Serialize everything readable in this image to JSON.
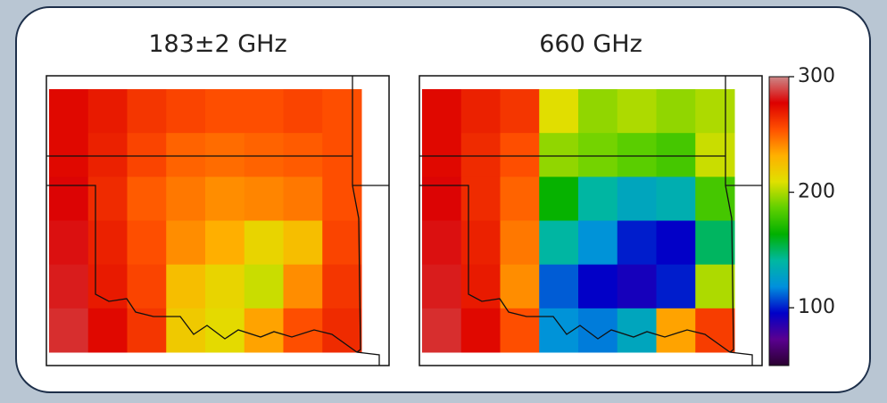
{
  "chart_data": [
    {
      "type": "heatmap",
      "title": "183±2 GHz",
      "z": [
        [
          275,
          270,
          262,
          258,
          255,
          255,
          258,
          255
        ],
        [
          275,
          268,
          258,
          250,
          248,
          250,
          252,
          255
        ],
        [
          278,
          265,
          252,
          245,
          240,
          242,
          245,
          255
        ],
        [
          280,
          268,
          255,
          240,
          232,
          215,
          225,
          258
        ],
        [
          282,
          270,
          258,
          225,
          215,
          205,
          240,
          262
        ],
        [
          285,
          275,
          262,
          220,
          212,
          235,
          255,
          265
        ]
      ]
    },
    {
      "type": "heatmap",
      "title": "660 GHz",
      "z": [
        [
          275,
          268,
          262,
          210,
          195,
          200,
          195,
          200
        ],
        [
          275,
          265,
          255,
          195,
          190,
          185,
          180,
          205
        ],
        [
          278,
          265,
          250,
          165,
          140,
          130,
          135,
          180
        ],
        [
          280,
          268,
          245,
          140,
          120,
          100,
          95,
          150
        ],
        [
          282,
          270,
          240,
          110,
          95,
          90,
          100,
          200
        ],
        [
          285,
          275,
          255,
          120,
          115,
          130,
          235,
          260
        ]
      ],
      "zlim": [
        50,
        300
      ],
      "zticks": [
        100,
        200,
        300
      ],
      "colormap": [
        "#2a0030",
        "#5a0090",
        "#0000c8",
        "#0090dd",
        "#00b8a0",
        "#00b000",
        "#60d000",
        "#e0e000",
        "#ffb000",
        "#ff5000",
        "#dd0000",
        "#cc8888"
      ]
    }
  ]
}
